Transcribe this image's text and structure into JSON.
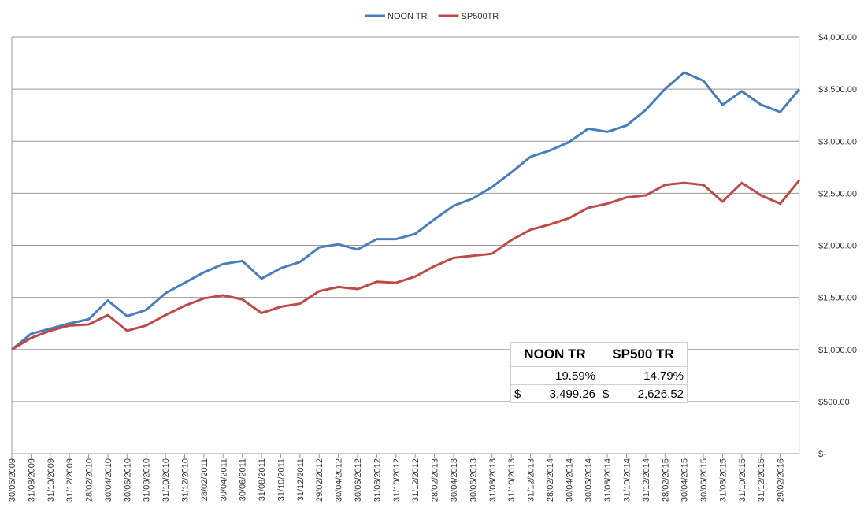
{
  "chart_data": {
    "type": "line",
    "categories": [
      "30/06/2009",
      "31/08/2009",
      "31/10/2009",
      "31/12/2009",
      "28/02/2010",
      "30/04/2010",
      "30/06/2010",
      "31/08/2010",
      "31/10/2010",
      "31/12/2010",
      "28/02/2011",
      "30/04/2011",
      "30/06/2011",
      "31/08/2011",
      "31/10/2011",
      "31/12/2011",
      "29/02/2012",
      "30/04/2012",
      "30/06/2012",
      "31/08/2012",
      "31/10/2012",
      "31/12/2012",
      "28/02/2013",
      "30/04/2013",
      "30/06/2013",
      "31/08/2013",
      "31/10/2013",
      "31/12/2013",
      "28/02/2014",
      "30/04/2014",
      "30/06/2014",
      "31/08/2014",
      "31/10/2014",
      "31/12/2014",
      "28/02/2015",
      "30/04/2015",
      "30/06/2015",
      "31/08/2015",
      "31/10/2015",
      "31/12/2015",
      "29/02/2016",
      null
    ],
    "series": [
      {
        "name": "NOON TR",
        "color": "#4a7ebb",
        "values": [
          1000,
          1150,
          1200,
          1250,
          1290,
          1470,
          1320,
          1380,
          1540,
          1640,
          1740,
          1820,
          1850,
          1680,
          1780,
          1840,
          1980,
          2010,
          1960,
          2060,
          2060,
          2110,
          2250,
          2380,
          2450,
          2560,
          2700,
          2850,
          2910,
          2990,
          3120,
          3090,
          3150,
          3300,
          3500,
          3660,
          3580,
          3350,
          3480,
          3350,
          3280,
          3499.26
        ]
      },
      {
        "name": "SP500TR",
        "color": "#be4b48",
        "values": [
          1000,
          1110,
          1180,
          1230,
          1240,
          1330,
          1180,
          1230,
          1330,
          1420,
          1490,
          1520,
          1480,
          1350,
          1410,
          1440,
          1560,
          1600,
          1580,
          1650,
          1640,
          1700,
          1800,
          1880,
          1900,
          1920,
          2050,
          2150,
          2200,
          2260,
          2360,
          2400,
          2460,
          2480,
          2580,
          2600,
          2580,
          2420,
          2600,
          2480,
          2400,
          2626.52
        ]
      }
    ],
    "ylim": [
      0,
      4000
    ],
    "yticks": [
      {
        "value": 0,
        "label": "$-"
      },
      {
        "value": 500,
        "label": "$500.00"
      },
      {
        "value": 1000,
        "label": "$1,000.00"
      },
      {
        "value": 1500,
        "label": "$1,500.00"
      },
      {
        "value": 2000,
        "label": "$2,000.00"
      },
      {
        "value": 2500,
        "label": "$2,500.00"
      },
      {
        "value": 3000,
        "label": "$3,000.00"
      },
      {
        "value": 3500,
        "label": "$3,500.00"
      },
      {
        "value": 4000,
        "label": "$4,000.00"
      }
    ],
    "grid": true,
    "legend": "top"
  },
  "table": {
    "header": [
      "NOON TR",
      "SP500 TR"
    ],
    "rows": [
      [
        [
          "",
          "19.59%"
        ],
        [
          "",
          "14.79%"
        ]
      ],
      [
        [
          "$",
          "3,499.26"
        ],
        [
          "$",
          "2,626.52"
        ]
      ]
    ]
  }
}
